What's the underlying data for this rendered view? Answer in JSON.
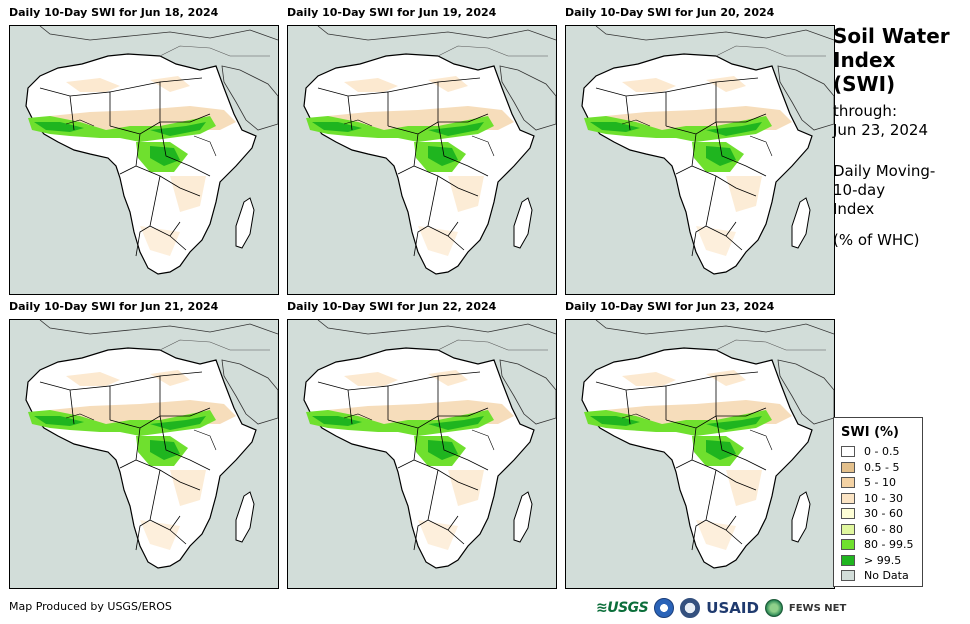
{
  "panels": [
    {
      "title": "Daily 10-Day SWI for Jun 18, 2024"
    },
    {
      "title": "Daily 10-Day SWI for Jun 19, 2024"
    },
    {
      "title": "Daily 10-Day SWI for Jun 20, 2024"
    },
    {
      "title": "Daily 10-Day SWI for Jun 21, 2024"
    },
    {
      "title": "Daily 10-Day SWI for Jun 22, 2024"
    },
    {
      "title": "Daily 10-Day SWI for Jun 23, 2024"
    }
  ],
  "title_block": {
    "title_line1": "Soil Water",
    "title_line2": "Index",
    "title_line3": "(SWI)",
    "through_label": "through:",
    "through_date": "Jun 23, 2024",
    "desc_line1": "Daily Moving-",
    "desc_line2": "10-day",
    "desc_line3": "Index",
    "units": "(% of WHC)"
  },
  "legend": {
    "title": "SWI (%)",
    "items": [
      {
        "label": "0 - 0.5",
        "color": "#ffffff"
      },
      {
        "label": "0.5 - 5",
        "color": "#e3c08c"
      },
      {
        "label": "5 - 10",
        "color": "#f3d2a4"
      },
      {
        "label": "10 - 30",
        "color": "#fbe4c4"
      },
      {
        "label": "30 - 60",
        "color": "#ffffd6"
      },
      {
        "label": "60 - 80",
        "color": "#e0f79e"
      },
      {
        "label": "80 - 99.5",
        "color": "#6fe02e"
      },
      {
        "label": "> 99.5",
        "color": "#1fb51f"
      },
      {
        "label": "No Data",
        "color": "#d2ddd9"
      }
    ]
  },
  "footer": {
    "credit": "Map Produced by USGS/EROS",
    "logo_usgs": "≋USGS",
    "logo_usaid": "USAID",
    "logo_fews": "FEWS NET"
  },
  "colors": {
    "no_data": "#d2ddd9",
    "land": "#ffffff",
    "tan": "#f3d2a4",
    "green_light": "#6fe02e",
    "green_dark": "#1fb51f"
  }
}
